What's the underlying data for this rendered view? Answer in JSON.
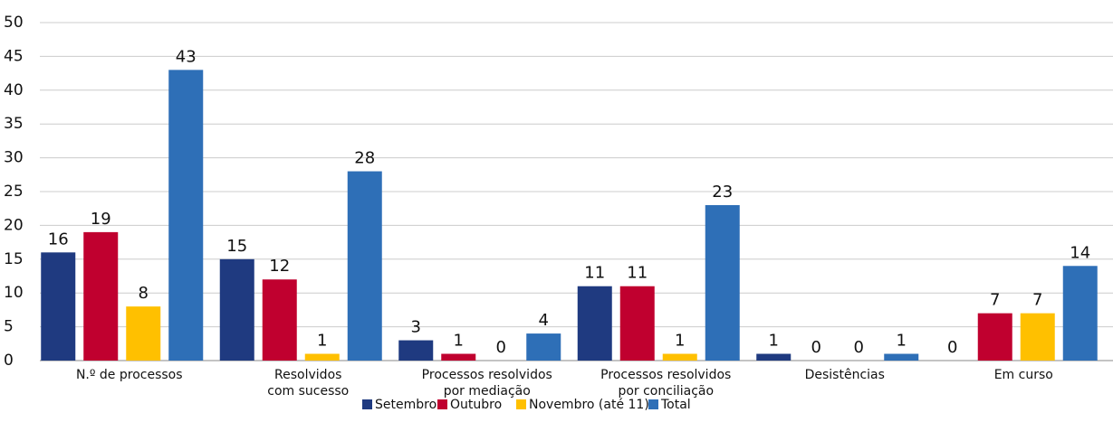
{
  "chart_data": {
    "type": "bar",
    "categories": [
      [
        "N.º de processos"
      ],
      [
        "Resolvidos",
        "com sucesso"
      ],
      [
        "Processos resolvidos",
        "por mediação"
      ],
      [
        "Processos resolvidos",
        "por conciliação"
      ],
      [
        "Desistências"
      ],
      [
        "Em curso"
      ]
    ],
    "series": [
      {
        "name": "Setembro",
        "color": "#1f3a80",
        "values": [
          16,
          15,
          3,
          11,
          1,
          0
        ]
      },
      {
        "name": "Outubro",
        "color": "#c0002f",
        "values": [
          19,
          12,
          1,
          11,
          0,
          7
        ]
      },
      {
        "name": "Novembro (até 11)",
        "color": "#ffc000",
        "values": [
          8,
          1,
          0,
          1,
          0,
          7
        ]
      },
      {
        "name": "Total",
        "color": "#2e6fb7",
        "values": [
          43,
          28,
          4,
          23,
          1,
          14
        ]
      }
    ],
    "ylim": [
      0,
      50
    ],
    "yticks": [
      0,
      5,
      10,
      15,
      20,
      25,
      30,
      35,
      40,
      45,
      50
    ],
    "grid": true,
    "legend": "bottom"
  }
}
